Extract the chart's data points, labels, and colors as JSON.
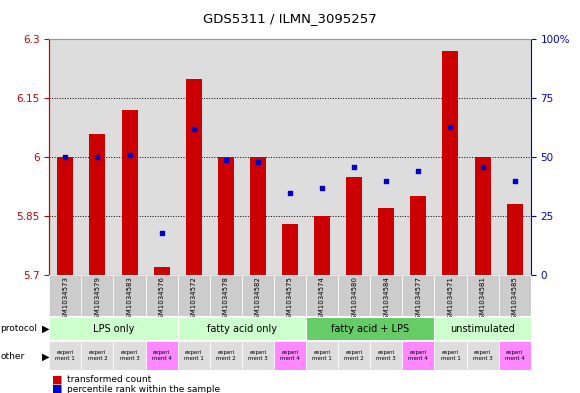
{
  "title": "GDS5311 / ILMN_3095257",
  "samples": [
    "GSM1034573",
    "GSM1034579",
    "GSM1034583",
    "GSM1034576",
    "GSM1034572",
    "GSM1034578",
    "GSM1034582",
    "GSM1034575",
    "GSM1034574",
    "GSM1034580",
    "GSM1034584",
    "GSM1034577",
    "GSM1034571",
    "GSM1034581",
    "GSM1034585"
  ],
  "bar_values": [
    6.0,
    6.06,
    6.12,
    5.72,
    6.2,
    6.0,
    6.0,
    5.83,
    5.85,
    5.95,
    5.87,
    5.9,
    6.27,
    6.0,
    5.88
  ],
  "dot_values": [
    50,
    50,
    51,
    18,
    62,
    49,
    48,
    35,
    37,
    46,
    40,
    44,
    63,
    46,
    40
  ],
  "ylim_left": [
    5.7,
    6.3
  ],
  "ylim_right": [
    0,
    100
  ],
  "yticks_left": [
    5.7,
    5.85,
    6.0,
    6.15,
    6.3
  ],
  "ytick_labels_left": [
    "5.7",
    "5.85",
    "6",
    "6.15",
    "6.3"
  ],
  "yticks_right": [
    0,
    25,
    50,
    75,
    100
  ],
  "ytick_labels_right": [
    "0",
    "25",
    "50",
    "75",
    "100%"
  ],
  "bar_color": "#CC0000",
  "dot_color": "#0000CC",
  "bar_bottom": 5.7,
  "protocol_groups": [
    {
      "label": "LPS only",
      "indices": [
        0,
        1,
        2,
        3
      ],
      "color": "#CCFFCC"
    },
    {
      "label": "fatty acid only",
      "indices": [
        4,
        5,
        6,
        7
      ],
      "color": "#CCFFCC"
    },
    {
      "label": "fatty acid + LPS",
      "indices": [
        8,
        9,
        10,
        11
      ],
      "color": "#66CC66"
    },
    {
      "label": "unstimulated",
      "indices": [
        12,
        13,
        14
      ],
      "color": "#CCFFCC"
    }
  ],
  "other_colors": [
    "#DDDDDD",
    "#DDDDDD",
    "#DDDDDD",
    "#FF88FF",
    "#DDDDDD",
    "#DDDDDD",
    "#DDDDDD",
    "#FF88FF",
    "#DDDDDD",
    "#DDDDDD",
    "#DDDDDD",
    "#FF88FF",
    "#DDDDDD",
    "#DDDDDD",
    "#FF88FF"
  ],
  "other_labels": [
    "experi\nment 1",
    "experi\nment 2",
    "experi\nment 3",
    "experi\nment 4",
    "experi\nment 1",
    "experi\nment 2",
    "experi\nment 3",
    "experi\nment 4",
    "experi\nment 1",
    "experi\nment 2",
    "experi\nment 3",
    "experi\nment 4",
    "experi\nment 1",
    "experi\nment 3",
    "experi\nment 4"
  ],
  "left_axis_color": "#CC0000",
  "right_axis_color": "#0000CC",
  "background_color": "#FFFFFF",
  "plot_bg_color": "#DDDDDD",
  "grid_ticks": [
    5.85,
    6.0,
    6.15
  ]
}
